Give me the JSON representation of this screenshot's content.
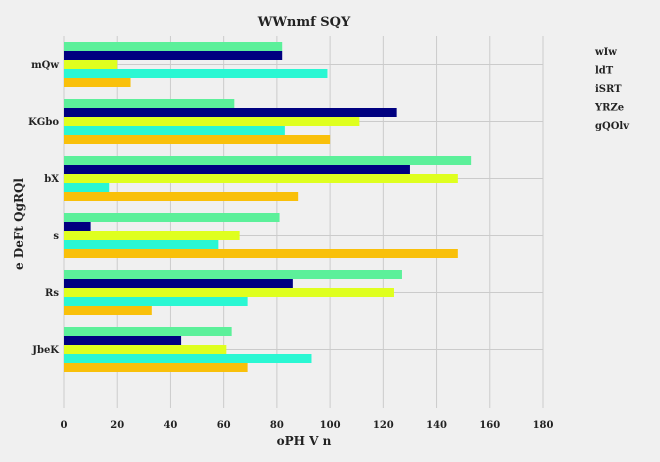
{
  "chart_data": {
    "type": "bar",
    "orientation": "horizontal",
    "title": "WWnmf  SQY",
    "xlabel": "oPH  V n",
    "ylabel": "e DeFt  QgRQl",
    "xlim": [
      0,
      180
    ],
    "xticks": [
      0,
      20,
      40,
      60,
      80,
      100,
      120,
      140,
      160,
      180
    ],
    "grid": true,
    "legend_position": "right",
    "categories": [
      "mQw",
      "KGbo",
      "bX",
      "s",
      "Rs",
      "JbeK"
    ],
    "series": [
      {
        "name": "wIw",
        "color": "#5cf09a",
        "values": [
          82,
          64,
          153,
          81,
          127,
          63
        ]
      },
      {
        "name": "ldT",
        "color": "#000080",
        "values": [
          82,
          125,
          130,
          10,
          86,
          44
        ]
      },
      {
        "name": "iSRT",
        "color": "#dfff1f",
        "values": [
          20,
          111,
          148,
          66,
          124,
          61
        ]
      },
      {
        "name": "YRZe",
        "color": "#2af7d3",
        "values": [
          99,
          83,
          17,
          58,
          69,
          93
        ]
      },
      {
        "name": "gQOlv",
        "color": "#f9c00a",
        "values": [
          25,
          100,
          88,
          148,
          33,
          69
        ]
      }
    ]
  }
}
